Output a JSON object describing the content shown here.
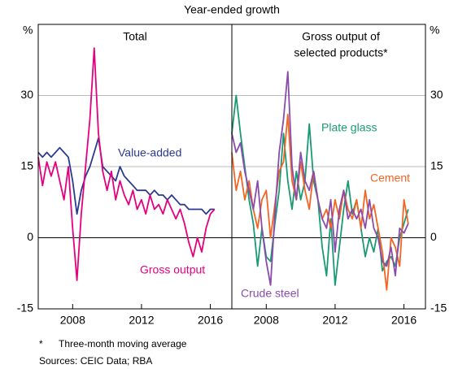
{
  "title": "Year-ended growth",
  "footnote_mark": "*",
  "footnote": "Three-month moving average",
  "sources": "Sources: CEIC Data; RBA",
  "chart_data": [
    {
      "type": "line",
      "title_lines": [
        "Total"
      ],
      "y_label": "%",
      "x": [
        2006,
        2006.25,
        2006.5,
        2006.75,
        2007,
        2007.25,
        2007.5,
        2007.75,
        2008,
        2008.25,
        2008.5,
        2008.75,
        2009,
        2009.25,
        2009.5,
        2009.75,
        2010,
        2010.25,
        2010.5,
        2010.75,
        2011,
        2011.25,
        2011.5,
        2011.75,
        2012,
        2012.25,
        2012.5,
        2012.75,
        2013,
        2013.25,
        2013.5,
        2013.75,
        2014,
        2014.25,
        2014.5,
        2014.75,
        2015,
        2015.25,
        2015.5,
        2015.75,
        2016,
        2016.25
      ],
      "xlim": [
        2006,
        2017.25
      ],
      "xticks": [
        2008,
        2012,
        2016
      ],
      "ylim": [
        -15,
        45
      ],
      "yticks": [
        -15,
        0,
        15,
        30
      ],
      "grid": true,
      "series": [
        {
          "name": "Value-added",
          "color": "#2b3990",
          "values": [
            18,
            17,
            18,
            17,
            18,
            19,
            18,
            17,
            12,
            5,
            10,
            13,
            15,
            18,
            21,
            15,
            14,
            13,
            12,
            15,
            13,
            12,
            11,
            10,
            10,
            10,
            9,
            10,
            9,
            9,
            8,
            9,
            8,
            7,
            7,
            6,
            6,
            6,
            6,
            5,
            6,
            6
          ]
        },
        {
          "name": "Gross output",
          "color": "#e5007e",
          "values": [
            17,
            11,
            16,
            13,
            16,
            12,
            8,
            15,
            2,
            -9,
            5,
            15,
            25,
            40,
            22,
            14,
            10,
            14,
            8,
            12,
            9,
            7,
            10,
            6,
            8,
            5,
            9,
            6,
            7,
            5,
            8,
            6,
            4,
            6,
            3,
            -1,
            -4,
            0,
            -3,
            2,
            5,
            6
          ]
        }
      ]
    },
    {
      "type": "line",
      "title_lines": [
        "Gross output of",
        "selected products*"
      ],
      "y_label": "%",
      "x": [
        2006,
        2006.25,
        2006.5,
        2006.75,
        2007,
        2007.25,
        2007.5,
        2007.75,
        2008,
        2008.25,
        2008.5,
        2008.75,
        2009,
        2009.25,
        2009.5,
        2009.75,
        2010,
        2010.25,
        2010.5,
        2010.75,
        2011,
        2011.25,
        2011.5,
        2011.75,
        2012,
        2012.25,
        2012.5,
        2012.75,
        2013,
        2013.25,
        2013.5,
        2013.75,
        2014,
        2014.25,
        2014.5,
        2014.75,
        2015,
        2015.25,
        2015.5,
        2015.75,
        2016,
        2016.25
      ],
      "xlim": [
        2006,
        2017.25
      ],
      "xticks": [
        2008,
        2012,
        2016
      ],
      "ylim": [
        -15,
        45
      ],
      "yticks": [
        -15,
        0,
        15,
        30
      ],
      "grid": true,
      "series": [
        {
          "name": "Plate glass",
          "color": "#1a9a73",
          "values": [
            22,
            30,
            22,
            15,
            8,
            3,
            -6,
            2,
            -4,
            -5,
            3,
            10,
            22,
            12,
            6,
            14,
            8,
            12,
            24,
            12,
            8,
            -2,
            -8,
            4,
            -10,
            -2,
            6,
            12,
            5,
            8,
            2,
            -4,
            0,
            -3,
            2,
            -7,
            -5,
            -4,
            -6,
            0,
            3,
            6
          ]
        },
        {
          "name": "Cement",
          "color": "#f26522",
          "values": [
            18,
            10,
            14,
            8,
            12,
            6,
            2,
            8,
            10,
            0,
            7,
            14,
            16,
            26,
            12,
            8,
            16,
            10,
            6,
            14,
            8,
            4,
            6,
            2,
            8,
            4,
            10,
            6,
            4,
            8,
            2,
            10,
            4,
            7,
            2,
            -3,
            -11,
            0,
            -2,
            -6,
            8,
            3
          ]
        },
        {
          "name": "Crude steel",
          "color": "#8a4bad",
          "values": [
            22,
            18,
            20,
            14,
            10,
            6,
            12,
            2,
            -5,
            -10,
            5,
            18,
            25,
            35,
            15,
            8,
            18,
            12,
            10,
            14,
            8,
            4,
            2,
            8,
            -3,
            6,
            10,
            4,
            6,
            4,
            6,
            2,
            8,
            2,
            0,
            -5,
            -6,
            -2,
            -8,
            2,
            1,
            3
          ]
        }
      ]
    }
  ]
}
